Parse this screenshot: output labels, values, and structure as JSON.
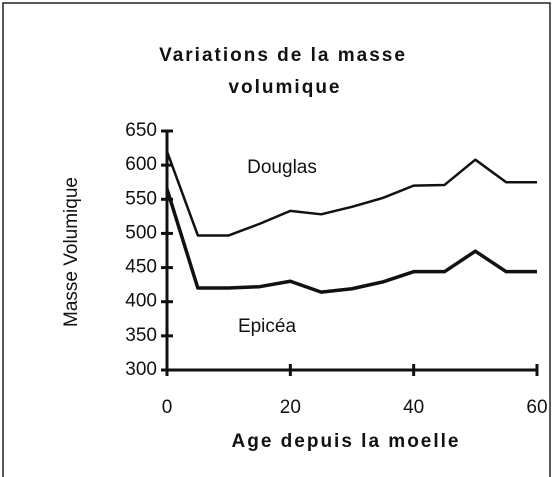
{
  "chart_data": {
    "type": "line",
    "title": [
      "Variations de la masse",
      "volumique"
    ],
    "x_label": "Age depuis la moelle",
    "y_label": "Masse Volumique",
    "x": [
      0,
      5,
      10,
      15,
      20,
      25,
      30,
      35,
      40,
      45,
      50,
      55,
      60
    ],
    "series": [
      {
        "name": "Douglas",
        "color": "#111111",
        "values": [
          620,
          497,
          497,
          514,
          533,
          528,
          539,
          552,
          570,
          571,
          608,
          575,
          575
        ]
      },
      {
        "name": "Epicéa",
        "color": "#111111",
        "values": [
          565,
          420,
          420,
          422,
          430,
          414,
          419,
          429,
          444,
          444,
          474,
          444,
          444
        ]
      }
    ],
    "xlim": [
      0,
      60
    ],
    "xticks": [
      0,
      20,
      40,
      60
    ],
    "ylim": [
      300,
      650
    ],
    "yticks": [
      300,
      350,
      400,
      450,
      500,
      550,
      600,
      650
    ],
    "grid": false
  }
}
